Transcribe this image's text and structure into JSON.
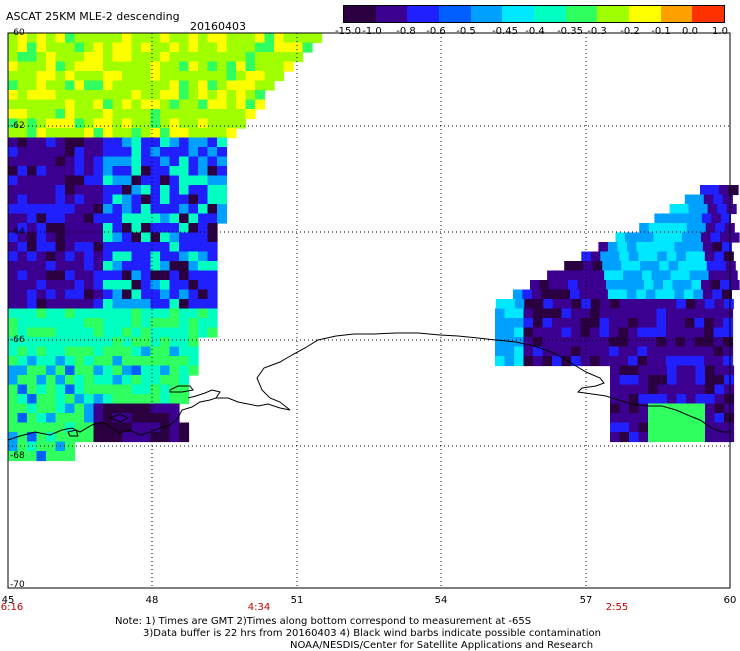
{
  "header": {
    "title": "ASCAT 25KM MLE-2 descending",
    "date": "20160403"
  },
  "colorbar": {
    "labels": [
      "-15.0",
      "-1.0",
      "-0.8",
      "-0.6",
      "-0.5",
      "-0.45",
      "-0.4",
      "-0.35",
      "-0.3",
      "-0.2",
      "-0.1",
      "0.0",
      "1.0"
    ],
    "colors": [
      "#2a0040",
      "#3c0090",
      "#2020ff",
      "#0060ff",
      "#00a0ff",
      "#00e8ff",
      "#00ffc0",
      "#30ff60",
      "#a0ff00",
      "#ffff00",
      "#ffa000",
      "#ff3000"
    ]
  },
  "axes": {
    "y_ticks": [
      "-60",
      "-62",
      "-64",
      "-66",
      "-68",
      "-70"
    ],
    "x_ticks": [
      "45",
      "48",
      "51",
      "54",
      "57",
      "60"
    ],
    "times": [
      {
        "label": "6:16",
        "at": "45"
      },
      {
        "label": "4:34",
        "at": "51"
      },
      {
        "label": "2:55",
        "at": "57"
      }
    ]
  },
  "notes": [
    "Note: 1) Times are GMT 2)Times along bottom correspond to measurement at -65S",
    "3)Data buffer is 22 hrs from 20160403 4) Black wind barbs indicate possible contamination",
    "NOAA/NESDIS/Center for Satellite Applications and Research"
  ]
}
